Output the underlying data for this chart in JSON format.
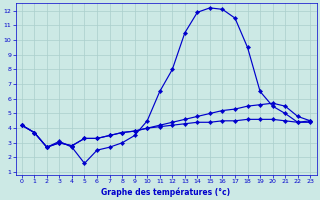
{
  "xlabel": "Graphe des températures (°c)",
  "xlim": [
    -0.5,
    23.5
  ],
  "ylim": [
    0.8,
    12.5
  ],
  "xticks": [
    0,
    1,
    2,
    3,
    4,
    5,
    6,
    7,
    8,
    9,
    10,
    11,
    12,
    13,
    14,
    15,
    16,
    17,
    18,
    19,
    20,
    21,
    22,
    23
  ],
  "yticks": [
    1,
    2,
    3,
    4,
    5,
    6,
    7,
    8,
    9,
    10,
    11,
    12
  ],
  "bg_color": "#cce9e5",
  "grid_color": "#aacfcc",
  "line_color": "#0000cc",
  "line1_x": [
    0,
    1,
    2,
    3,
    4,
    5,
    6,
    7,
    8,
    9,
    10,
    11,
    12,
    13,
    14,
    15,
    16,
    17,
    18,
    19,
    20,
    21,
    22,
    23
  ],
  "line1_y": [
    4.2,
    3.7,
    2.7,
    3.1,
    2.7,
    1.6,
    2.5,
    2.7,
    3.0,
    3.5,
    4.5,
    6.5,
    8.0,
    10.5,
    11.9,
    12.2,
    12.1,
    11.5,
    9.5,
    6.5,
    5.5,
    5.0,
    4.4,
    4.5
  ],
  "line2_x": [
    0,
    1,
    2,
    3,
    4,
    5,
    6,
    7,
    8,
    9,
    10,
    11,
    12,
    13,
    14,
    15,
    16,
    17,
    18,
    19,
    20,
    21,
    22,
    23
  ],
  "line2_y": [
    4.2,
    3.7,
    2.7,
    3.0,
    2.8,
    3.3,
    3.3,
    3.5,
    3.7,
    3.8,
    4.0,
    4.2,
    4.4,
    4.6,
    4.8,
    5.0,
    5.2,
    5.3,
    5.5,
    5.6,
    5.7,
    5.5,
    4.8,
    4.5
  ],
  "line3_x": [
    0,
    1,
    2,
    3,
    4,
    5,
    6,
    7,
    8,
    9,
    10,
    11,
    12,
    13,
    14,
    15,
    16,
    17,
    18,
    19,
    20,
    21,
    22,
    23
  ],
  "line3_y": [
    4.2,
    3.7,
    2.7,
    3.0,
    2.8,
    3.3,
    3.3,
    3.5,
    3.7,
    3.8,
    4.0,
    4.1,
    4.2,
    4.3,
    4.4,
    4.4,
    4.5,
    4.5,
    4.6,
    4.6,
    4.6,
    4.5,
    4.4,
    4.4
  ]
}
